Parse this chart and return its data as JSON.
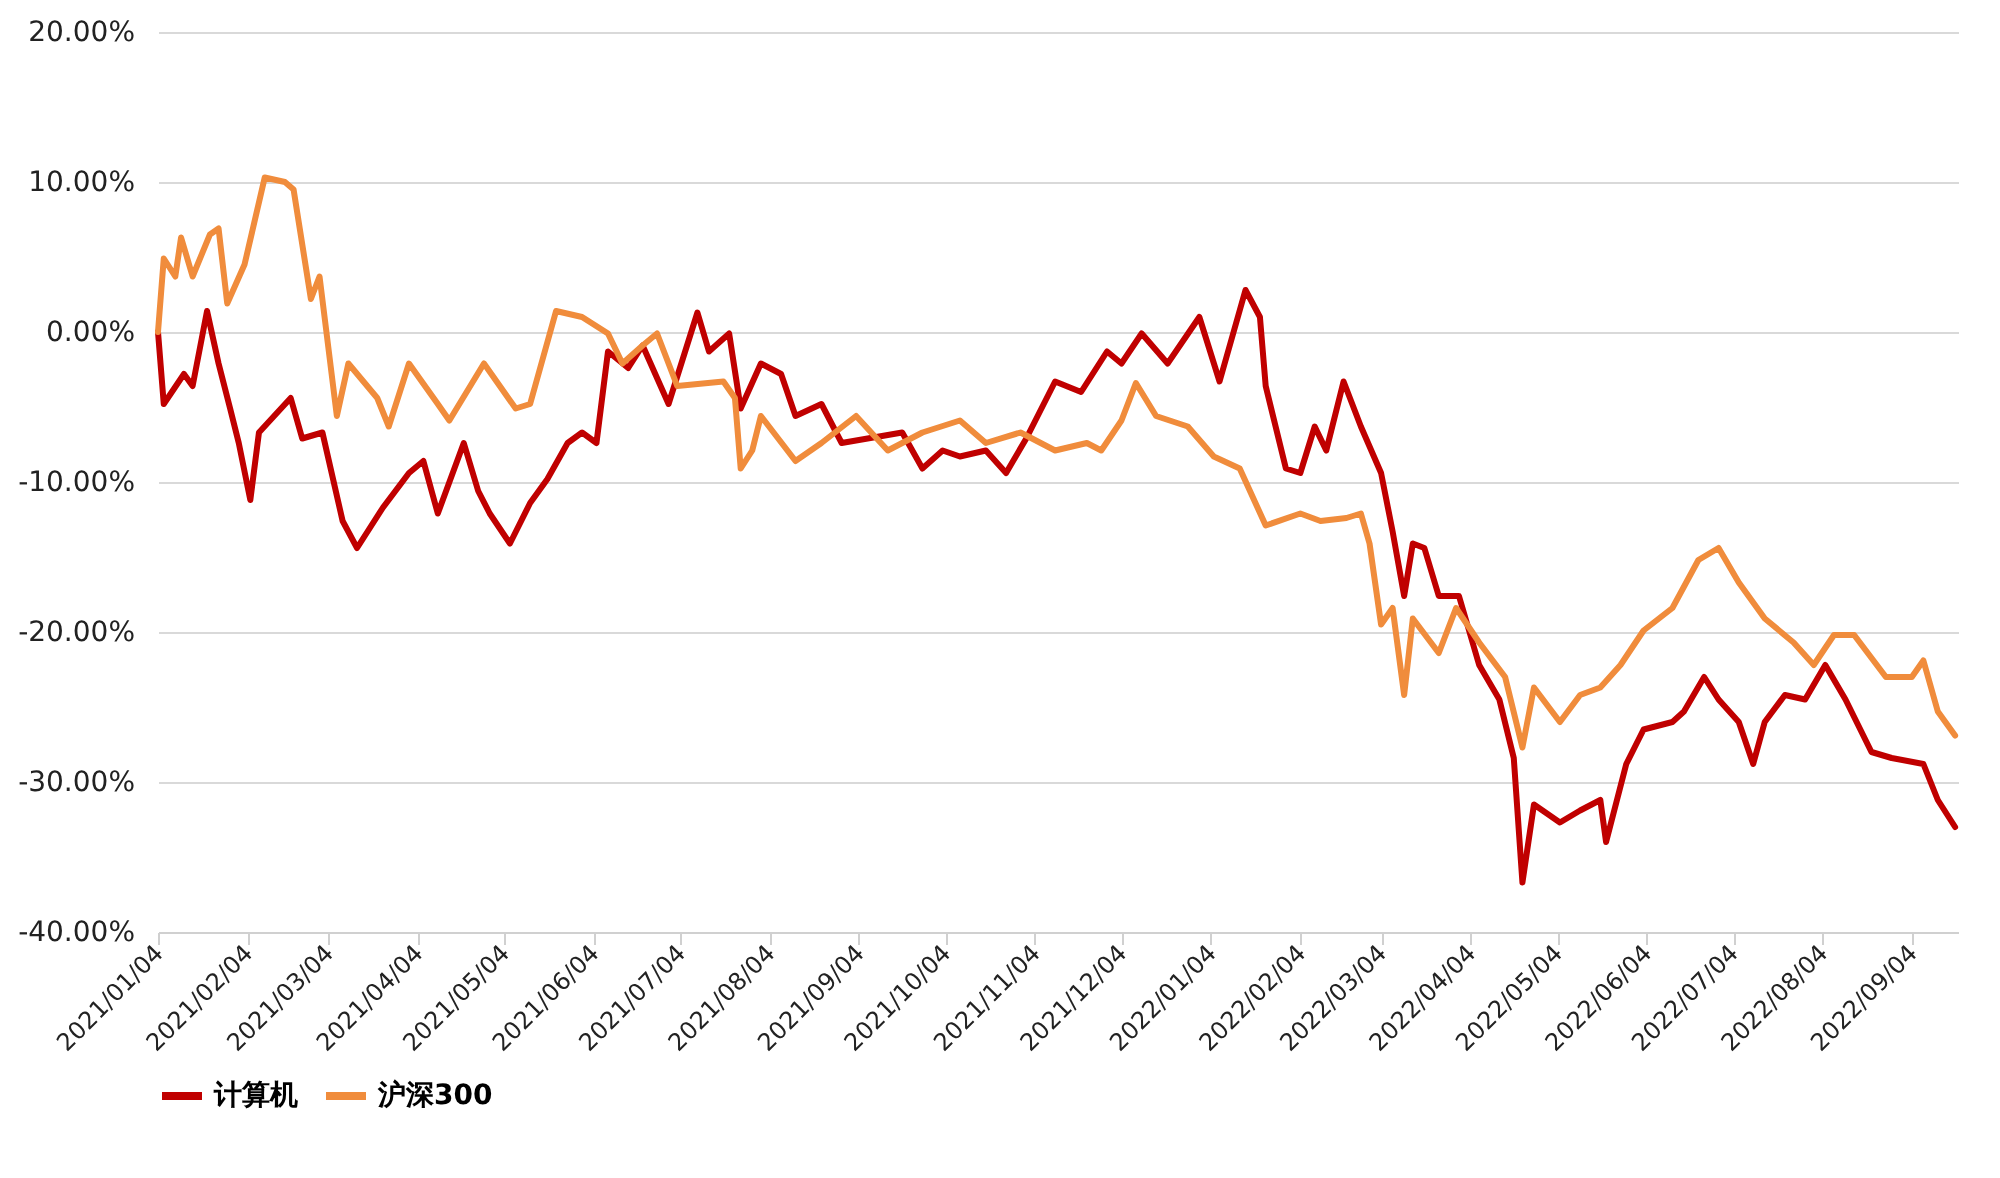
{
  "chart_data": {
    "type": "line",
    "ylim": [
      -40,
      20
    ],
    "yticks": [
      {
        "value": -40,
        "label": "-40.00%"
      },
      {
        "value": -30,
        "label": "-30.00%"
      },
      {
        "value": -20,
        "label": "-20.00%"
      },
      {
        "value": -10,
        "label": "-10.00%"
      },
      {
        "value": 0,
        "label": "0.00%"
      },
      {
        "value": 10,
        "label": "10.00%"
      },
      {
        "value": 20,
        "label": "20.00%"
      }
    ],
    "xlim": [
      "2021-01-04",
      "2022-09-20"
    ],
    "xticks": [
      {
        "value": "2021-01-04",
        "label": "2021/01/04"
      },
      {
        "value": "2021-02-04",
        "label": "2021/02/04"
      },
      {
        "value": "2021-03-04",
        "label": "2021/03/04"
      },
      {
        "value": "2021-04-04",
        "label": "2021/04/04"
      },
      {
        "value": "2021-05-04",
        "label": "2021/05/04"
      },
      {
        "value": "2021-06-04",
        "label": "2021/06/04"
      },
      {
        "value": "2021-07-04",
        "label": "2021/07/04"
      },
      {
        "value": "2021-08-04",
        "label": "2021/08/04"
      },
      {
        "value": "2021-09-04",
        "label": "2021/09/04"
      },
      {
        "value": "2021-10-04",
        "label": "2021/10/04"
      },
      {
        "value": "2021-11-04",
        "label": "2021/11/04"
      },
      {
        "value": "2021-12-04",
        "label": "2021/12/04"
      },
      {
        "value": "2022-01-04",
        "label": "2022/01/04"
      },
      {
        "value": "2022-02-04",
        "label": "2022/02/04"
      },
      {
        "value": "2022-03-04",
        "label": "2022/03/04"
      },
      {
        "value": "2022-04-04",
        "label": "2022/04/04"
      },
      {
        "value": "2022-05-04",
        "label": "2022/05/04"
      },
      {
        "value": "2022-06-04",
        "label": "2022/06/04"
      },
      {
        "value": "2022-07-04",
        "label": "2022/07/04"
      },
      {
        "value": "2022-08-04",
        "label": "2022/08/04"
      },
      {
        "value": "2022-09-04",
        "label": "2022/09/04"
      }
    ],
    "grid": "y",
    "legend": "bottom",
    "line_style": "solid",
    "marker": "none",
    "series": [
      {
        "name": "计算机",
        "color": "#c00000",
        "x": [
          "2021-01-04",
          "2021-01-06",
          "2021-01-13",
          "2021-01-16",
          "2021-01-21",
          "2021-01-25",
          "2021-01-29",
          "2021-02-01",
          "2021-02-05",
          "2021-02-08",
          "2021-02-19",
          "2021-02-23",
          "2021-03-02",
          "2021-03-09",
          "2021-03-14",
          "2021-03-23",
          "2021-04-01",
          "2021-04-06",
          "2021-04-11",
          "2021-04-20",
          "2021-04-25",
          "2021-04-29",
          "2021-05-06",
          "2021-05-13",
          "2021-05-19",
          "2021-05-26",
          "2021-05-31",
          "2021-06-05",
          "2021-06-09",
          "2021-06-16",
          "2021-06-21",
          "2021-06-30",
          "2021-07-10",
          "2021-07-14",
          "2021-07-21",
          "2021-07-25",
          "2021-08-01",
          "2021-08-08",
          "2021-08-13",
          "2021-08-22",
          "2021-08-29",
          "2021-09-07",
          "2021-09-19",
          "2021-09-26",
          "2021-10-03",
          "2021-10-09",
          "2021-10-18",
          "2021-10-25",
          "2021-11-01",
          "2021-11-11",
          "2021-11-20",
          "2021-11-29",
          "2021-12-04",
          "2021-12-11",
          "2021-12-20",
          "2021-12-31",
          "2022-01-07",
          "2022-01-16",
          "2022-01-21",
          "2022-01-23",
          "2022-01-30",
          "2022-02-04",
          "2022-02-09",
          "2022-02-13",
          "2022-02-19",
          "2022-02-25",
          "2022-03-04",
          "2022-03-08",
          "2022-03-12",
          "2022-03-15",
          "2022-03-19",
          "2022-03-24",
          "2022-03-31",
          "2022-04-07",
          "2022-04-14",
          "2022-04-19",
          "2022-04-22",
          "2022-04-26",
          "2022-05-05",
          "2022-05-12",
          "2022-05-19",
          "2022-05-21",
          "2022-05-28",
          "2022-06-03",
          "2022-06-13",
          "2022-06-17",
          "2022-06-24",
          "2022-06-29",
          "2022-07-06",
          "2022-07-11",
          "2022-07-15",
          "2022-07-22",
          "2022-07-29",
          "2022-08-05",
          "2022-08-12",
          "2022-08-21",
          "2022-08-28",
          "2022-09-08",
          "2022-09-13",
          "2022-09-19"
        ],
        "values": [
          0,
          -4.8,
          -2.8,
          -3.6,
          1.4,
          -2.1,
          -5.1,
          -7.4,
          -11.2,
          -6.7,
          -4.4,
          -7.1,
          -6.7,
          -12.6,
          -14.4,
          -11.7,
          -9.4,
          -8.6,
          -12.1,
          -7.4,
          -10.6,
          -12.1,
          -14.1,
          -11.4,
          -9.8,
          -7.4,
          -6.7,
          -7.4,
          -1.3,
          -2.4,
          -0.9,
          -4.8,
          1.3,
          -1.3,
          -0.1,
          -5.1,
          -2.1,
          -2.8,
          -5.6,
          -4.8,
          -7.4,
          -7.1,
          -6.7,
          -9.1,
          -7.9,
          -8.3,
          -7.9,
          -9.4,
          -7.1,
          -3.3,
          -4.0,
          -1.3,
          -2.1,
          -0.1,
          -2.1,
          1.0,
          -3.3,
          2.8,
          1.0,
          -3.6,
          -9.1,
          -9.4,
          -6.3,
          -7.9,
          -3.3,
          -6.3,
          -9.4,
          -13.3,
          -17.6,
          -14.1,
          -14.4,
          -17.6,
          -17.6,
          -22.2,
          -24.5,
          -28.4,
          -36.7,
          -31.5,
          -32.7,
          -31.9,
          -31.2,
          -34.0,
          -28.8,
          -26.5,
          -26.0,
          -25.3,
          -23.0,
          -24.5,
          -26.0,
          -28.8,
          -26.0,
          -24.2,
          -24.5,
          -22.2,
          -24.5,
          -28.0,
          -28.4,
          -28.8,
          -31.2,
          -33.0
        ]
      },
      {
        "name": "沪深300",
        "color": "#f08c3c",
        "x": [
          "2021-01-04",
          "2021-01-06",
          "2021-01-10",
          "2021-01-12",
          "2021-01-16",
          "2021-01-22",
          "2021-01-25",
          "2021-01-28",
          "2021-02-03",
          "2021-02-10",
          "2021-02-17",
          "2021-02-20",
          "2021-02-26",
          "2021-03-01",
          "2021-03-07",
          "2021-03-11",
          "2021-03-21",
          "2021-03-25",
          "2021-04-01",
          "2021-04-11",
          "2021-04-15",
          "2021-04-27",
          "2021-05-08",
          "2021-05-13",
          "2021-05-22",
          "2021-05-31",
          "2021-06-09",
          "2021-06-14",
          "2021-06-21",
          "2021-06-26",
          "2021-07-03",
          "2021-07-19",
          "2021-07-23",
          "2021-07-25",
          "2021-07-29",
          "2021-08-01",
          "2021-08-13",
          "2021-08-22",
          "2021-09-03",
          "2021-09-14",
          "2021-09-26",
          "2021-10-09",
          "2021-10-18",
          "2021-10-30",
          "2021-11-11",
          "2021-11-22",
          "2021-11-27",
          "2021-12-04",
          "2021-12-09",
          "2021-12-16",
          "2021-12-27",
          "2022-01-05",
          "2022-01-14",
          "2022-01-23",
          "2022-02-04",
          "2022-02-11",
          "2022-02-20",
          "2022-02-25",
          "2022-02-28",
          "2022-03-04",
          "2022-03-08",
          "2022-03-12",
          "2022-03-15",
          "2022-03-24",
          "2022-03-30",
          "2022-04-07",
          "2022-04-16",
          "2022-04-22",
          "2022-04-26",
          "2022-05-05",
          "2022-05-12",
          "2022-05-19",
          "2022-05-26",
          "2022-06-03",
          "2022-06-13",
          "2022-06-22",
          "2022-06-29",
          "2022-07-06",
          "2022-07-15",
          "2022-07-25",
          "2022-08-01",
          "2022-08-08",
          "2022-08-15",
          "2022-08-26",
          "2022-09-04",
          "2022-09-08",
          "2022-09-13",
          "2022-09-19"
        ],
        "values": [
          0,
          4.9,
          3.7,
          6.3,
          3.7,
          6.5,
          6.9,
          1.9,
          4.5,
          10.3,
          10.0,
          9.5,
          2.2,
          3.7,
          -5.6,
          -2.1,
          -4.4,
          -6.3,
          -2.1,
          -4.8,
          -5.9,
          -2.1,
          -5.1,
          -4.8,
          1.4,
          1.0,
          -0.1,
          -2.1,
          -0.9,
          -0.1,
          -3.6,
          -3.3,
          -4.4,
          -9.1,
          -7.9,
          -5.6,
          -8.6,
          -7.4,
          -5.6,
          -7.9,
          -6.7,
          -5.9,
          -7.4,
          -6.7,
          -7.9,
          -7.4,
          -7.9,
          -5.9,
          -3.4,
          -5.6,
          -6.3,
          -8.3,
          -9.1,
          -12.9,
          -12.1,
          -12.6,
          -12.4,
          -12.1,
          -14.1,
          -19.5,
          -18.4,
          -24.2,
          -19.1,
          -21.4,
          -18.4,
          -20.7,
          -23.0,
          -27.7,
          -23.7,
          -26.0,
          -24.2,
          -23.7,
          -22.2,
          -19.9,
          -18.4,
          -15.2,
          -14.4,
          -16.7,
          -19.1,
          -20.7,
          -22.2,
          -20.2,
          -20.2,
          -23.0,
          -23.0,
          -21.9,
          -25.3,
          -26.9
        ]
      }
    ]
  }
}
